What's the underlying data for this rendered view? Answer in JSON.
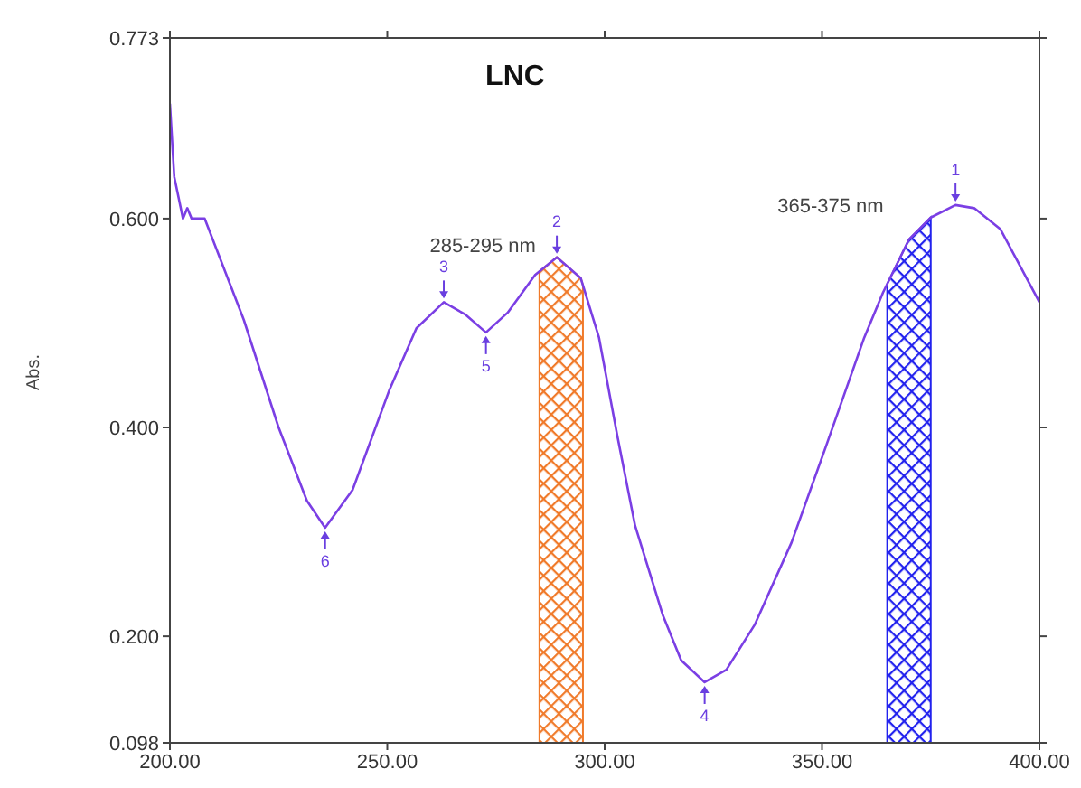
{
  "chart_data": {
    "type": "line",
    "title": "LNC",
    "ylabel": "Abs.",
    "x": [
      200,
      201,
      202,
      203,
      204,
      205,
      208,
      217,
      225,
      231.5,
      235.7,
      242,
      250.4,
      256.7,
      263,
      268,
      272.7,
      277.7,
      284,
      289,
      294.5,
      298.7,
      303,
      307,
      313.4,
      317.6,
      323,
      328,
      334.5,
      343,
      351,
      359.7,
      364,
      370,
      375,
      380.7,
      385,
      391,
      400
    ],
    "series": [
      {
        "color": "#7b3fe4",
        "values": [
          0.71,
          0.64,
          0.62,
          0.6,
          0.61,
          0.6,
          0.6,
          0.503,
          0.4,
          0.33,
          0.304,
          0.34,
          0.435,
          0.495,
          0.52,
          0.508,
          0.491,
          0.51,
          0.546,
          0.563,
          0.543,
          0.486,
          0.39,
          0.306,
          0.22,
          0.177,
          0.156,
          0.168,
          0.211,
          0.29,
          0.383,
          0.486,
          0.529,
          0.58,
          0.601,
          0.613,
          0.61,
          0.59,
          0.52
        ]
      }
    ],
    "xlim": [
      200,
      400
    ],
    "xticks": [
      {
        "value": 200,
        "label": "200.00"
      },
      {
        "value": 250,
        "label": "250.00"
      },
      {
        "value": 300,
        "label": "300.00"
      },
      {
        "value": 350,
        "label": "350.00"
      },
      {
        "value": 400,
        "label": "400.00"
      }
    ],
    "ylim": [
      0.098,
      0.773
    ],
    "yticks": [
      {
        "value": 0.098,
        "label": "0.098"
      },
      {
        "value": 0.2,
        "label": "0.200"
      },
      {
        "value": 0.4,
        "label": "0.400"
      },
      {
        "value": 0.6,
        "label": "0.600"
      },
      {
        "value": 0.773,
        "label": "0.773"
      }
    ],
    "bands": [
      {
        "axis": "x",
        "from": 285,
        "to": 295,
        "label": "285-295 nm",
        "color": "#f07a2a"
      },
      {
        "axis": "x",
        "from": 365,
        "to": 375,
        "label": "365-375 nm",
        "color": "#2222ee"
      }
    ],
    "annotations": [
      {
        "text": "1",
        "x": 380.7,
        "y": 0.613
      },
      {
        "text": "2",
        "x": 289,
        "y": 0.563
      },
      {
        "text": "3",
        "x": 263,
        "y": 0.52
      },
      {
        "text": "4",
        "x": 323,
        "y": 0.156
      },
      {
        "text": "5",
        "x": 272.7,
        "y": 0.491
      },
      {
        "text": "6",
        "x": 235.7,
        "y": 0.304
      }
    ],
    "grid": false,
    "legend": false,
    "marker": "none",
    "line_style": "solid"
  }
}
